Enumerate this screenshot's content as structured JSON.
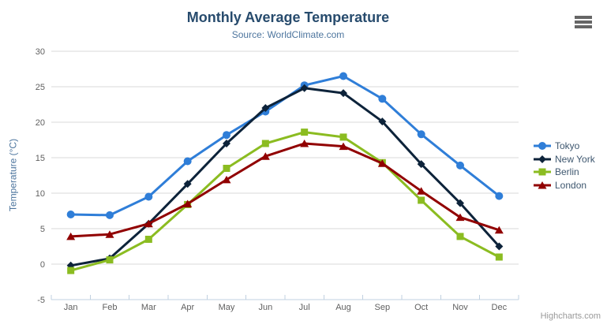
{
  "chart_data": {
    "type": "line",
    "title": "Monthly Average Temperature",
    "subtitle": "Source: WorldClimate.com",
    "xlabel": "",
    "ylabel": "Temperature (°C)",
    "ylim": [
      -5,
      30
    ],
    "y_ticks": [
      -5,
      0,
      5,
      10,
      15,
      20,
      25,
      30
    ],
    "grid": true,
    "legend_position": "right",
    "categories": [
      "Jan",
      "Feb",
      "Mar",
      "Apr",
      "May",
      "Jun",
      "Jul",
      "Aug",
      "Sep",
      "Oct",
      "Nov",
      "Dec"
    ],
    "series": [
      {
        "name": "Tokyo",
        "color": "#2f7ed8",
        "marker": "circle",
        "values": [
          7.0,
          6.9,
          9.5,
          14.5,
          18.2,
          21.5,
          25.2,
          26.5,
          23.3,
          18.3,
          13.9,
          9.6
        ]
      },
      {
        "name": "New York",
        "color": "#0d233a",
        "marker": "diamond",
        "values": [
          -0.2,
          0.8,
          5.7,
          11.3,
          17.0,
          22.0,
          24.8,
          24.1,
          20.1,
          14.1,
          8.6,
          2.5
        ]
      },
      {
        "name": "Berlin",
        "color": "#8bbc21",
        "marker": "square",
        "values": [
          -0.9,
          0.6,
          3.5,
          8.4,
          13.5,
          17.0,
          18.6,
          17.9,
          14.3,
          9.0,
          3.9,
          1.0
        ]
      },
      {
        "name": "London",
        "color": "#910000",
        "marker": "triangle",
        "values": [
          3.9,
          4.2,
          5.7,
          8.5,
          11.9,
          15.2,
          17.0,
          16.6,
          14.2,
          10.3,
          6.6,
          4.8
        ]
      }
    ]
  },
  "theme_colors": {
    "grid_line": "#d8d8d8",
    "axis_line": "#c0d0e0",
    "tick_label": "#606060",
    "title": "#274b6d",
    "subtitle": "#4d759e",
    "legend_text": "#3e576f",
    "menu_icon": "#666666",
    "credit": "#999999"
  },
  "menu": {
    "icon": "hamburger-icon"
  },
  "credit": {
    "label": "Highcharts.com"
  }
}
